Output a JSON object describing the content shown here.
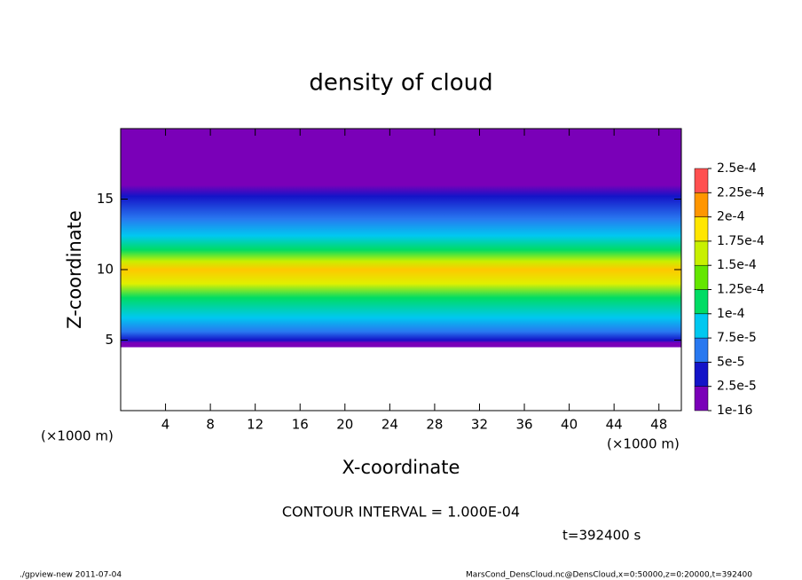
{
  "chart_data": {
    "type": "contour",
    "title": "density of cloud",
    "xlabel": "X-coordinate",
    "ylabel": "Z-coordinate",
    "xunit": "(×1000 m)",
    "yunit": "(×1000 m)",
    "xlim": [
      0,
      50
    ],
    "ylim": [
      0,
      20
    ],
    "xticks": [
      4,
      8,
      12,
      16,
      20,
      24,
      28,
      32,
      36,
      40,
      44,
      48
    ],
    "yticks": [
      5,
      10,
      15
    ],
    "colorbar": {
      "levels": [
        {
          "value": 1e-16,
          "label": "1e-16"
        },
        {
          "value": 2.5e-05,
          "label": "2.5e-5"
        },
        {
          "value": 5e-05,
          "label": "5e-5"
        },
        {
          "value": 7.5e-05,
          "label": "7.5e-5"
        },
        {
          "value": 0.0001,
          "label": "1e-4"
        },
        {
          "value": 0.000125,
          "label": "1.25e-4"
        },
        {
          "value": 0.00015,
          "label": "1.5e-4"
        },
        {
          "value": 0.000175,
          "label": "1.75e-4"
        },
        {
          "value": 0.0002,
          "label": "2e-4"
        },
        {
          "value": 0.000225,
          "label": "2.25e-4"
        },
        {
          "value": 0.00025,
          "label": "2.5e-4"
        }
      ],
      "colors": [
        "#7a00b8",
        "#1414c8",
        "#2878f0",
        "#00c8f0",
        "#00dc64",
        "#64e600",
        "#c8f000",
        "#ffe600",
        "#ff9600",
        "#ff5050"
      ]
    },
    "annotations": {
      "contour_interval": "CONTOUR INTERVAL = 1.000E-04",
      "time": "t=392400 s",
      "footer_left": "./gpview-new  2011-07-04",
      "footer_right": "MarsCond_DensCloud.nc@DensCloud,x=0:50000,z=0:20000,t=392400"
    }
  }
}
